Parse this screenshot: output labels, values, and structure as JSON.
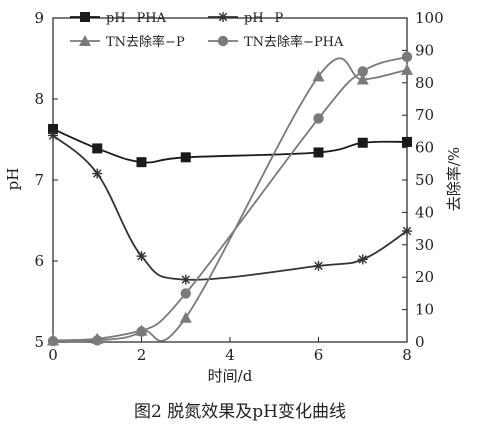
{
  "chart_data": {
    "type": "line",
    "caption": "图2  脱氮效果及pH变化曲线",
    "xlabel": "时间/d",
    "ylabel_left": "pH",
    "ylabel_right": "去除率/%",
    "x_ticks": [
      0,
      2,
      4,
      6,
      8
    ],
    "y_left_ticks": [
      5,
      6,
      7,
      8,
      9
    ],
    "y_right_ticks": [
      0,
      10,
      20,
      30,
      40,
      50,
      60,
      70,
      80,
      90,
      100
    ],
    "xlim": [
      0,
      8
    ],
    "ylim_left": [
      5,
      9
    ],
    "ylim_right": [
      0,
      100
    ],
    "legend_position": "top-left",
    "series": [
      {
        "name": "pH−PHA",
        "axis": "left",
        "marker": "square",
        "color": "#1a1a1a",
        "x": [
          0,
          1,
          2,
          3,
          6,
          7,
          8
        ],
        "values": [
          7.63,
          7.39,
          7.22,
          7.28,
          7.34,
          7.46,
          7.47
        ]
      },
      {
        "name": "pH−P",
        "axis": "left",
        "marker": "star",
        "color": "#333333",
        "x": [
          0,
          1,
          2,
          3,
          6,
          7,
          8
        ],
        "values": [
          7.55,
          7.08,
          6.06,
          5.77,
          5.94,
          6.02,
          6.37
        ]
      },
      {
        "name": "TN去除率−P",
        "axis": "right",
        "marker": "triangle",
        "color": "#7a7a7a",
        "x": [
          0,
          1,
          2,
          3,
          6,
          7,
          8
        ],
        "values": [
          0.5,
          1,
          3.5,
          7.5,
          82,
          81,
          84
        ]
      },
      {
        "name": "TN去除率−PHA",
        "axis": "right",
        "marker": "circle",
        "color": "#7a7a7a",
        "x": [
          0,
          1,
          2,
          3,
          6,
          7,
          8
        ],
        "values": [
          0.3,
          0.5,
          3.2,
          15,
          69,
          83.5,
          88
        ]
      }
    ]
  }
}
